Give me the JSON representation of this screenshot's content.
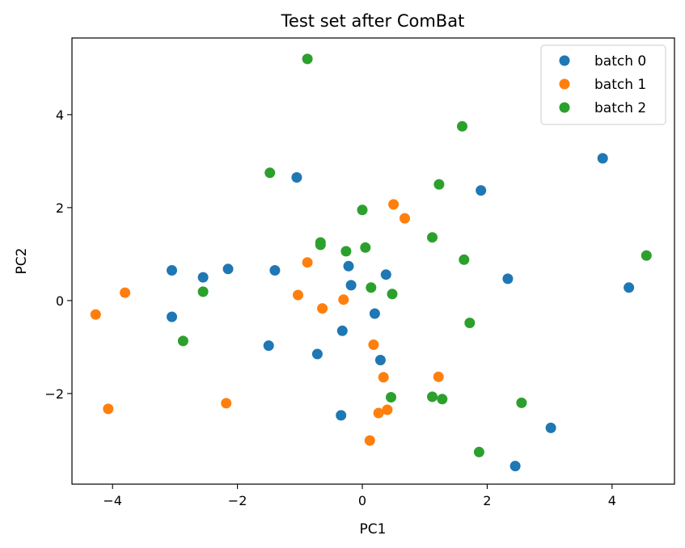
{
  "chart_data": {
    "type": "scatter",
    "title": "Test set after ComBat",
    "xlabel": "PC1",
    "ylabel": "PC2",
    "xlim": [
      -4.65,
      5.0
    ],
    "ylim": [
      -3.95,
      5.65
    ],
    "xticks": [
      -4,
      -2,
      0,
      2,
      4
    ],
    "yticks": [
      -2,
      0,
      2,
      4
    ],
    "grid": false,
    "legend_position": "top-right",
    "series": [
      {
        "name": "batch 0",
        "color": "#1f77b4",
        "points": [
          [
            -3.05,
            0.65
          ],
          [
            -2.55,
            0.5
          ],
          [
            -2.15,
            0.68
          ],
          [
            -1.4,
            0.65
          ],
          [
            -1.05,
            2.65
          ],
          [
            -3.05,
            -0.35
          ],
          [
            -1.5,
            -0.97
          ],
          [
            -0.72,
            -1.15
          ],
          [
            -0.32,
            -0.65
          ],
          [
            -0.22,
            0.74
          ],
          [
            -0.18,
            0.33
          ],
          [
            0.38,
            0.56
          ],
          [
            0.2,
            -0.28
          ],
          [
            0.29,
            -1.28
          ],
          [
            -0.34,
            -2.47
          ],
          [
            1.9,
            2.37
          ],
          [
            2.33,
            0.47
          ],
          [
            3.85,
            3.06
          ],
          [
            4.27,
            0.28
          ],
          [
            3.02,
            -2.74
          ],
          [
            2.45,
            -3.56
          ]
        ]
      },
      {
        "name": "batch 1",
        "color": "#ff7f0e",
        "points": [
          [
            -4.27,
            -0.3
          ],
          [
            -3.8,
            0.17
          ],
          [
            -4.07,
            -2.33
          ],
          [
            -2.18,
            -2.21
          ],
          [
            -0.88,
            0.82
          ],
          [
            -1.03,
            0.12
          ],
          [
            -0.64,
            -0.17
          ],
          [
            -0.3,
            0.02
          ],
          [
            0.5,
            2.07
          ],
          [
            0.68,
            1.77
          ],
          [
            0.18,
            -0.95
          ],
          [
            0.34,
            -1.65
          ],
          [
            1.22,
            -1.64
          ],
          [
            0.26,
            -2.42
          ],
          [
            0.4,
            -2.35
          ],
          [
            0.12,
            -3.01
          ]
        ]
      },
      {
        "name": "batch 2",
        "color": "#2ca02c",
        "points": [
          [
            -0.88,
            5.2
          ],
          [
            1.6,
            3.75
          ],
          [
            -1.48,
            2.75
          ],
          [
            1.23,
            2.5
          ],
          [
            0.0,
            1.95
          ],
          [
            -0.67,
            1.25
          ],
          [
            -0.67,
            1.2
          ],
          [
            -0.26,
            1.06
          ],
          [
            0.05,
            1.14
          ],
          [
            1.12,
            1.36
          ],
          [
            1.63,
            0.88
          ],
          [
            4.55,
            0.97
          ],
          [
            0.14,
            0.28
          ],
          [
            0.48,
            0.14
          ],
          [
            -2.55,
            0.19
          ],
          [
            1.72,
            -0.48
          ],
          [
            -2.87,
            -0.87
          ],
          [
            0.46,
            -2.08
          ],
          [
            1.12,
            -2.07
          ],
          [
            1.28,
            -2.12
          ],
          [
            2.55,
            -2.2
          ],
          [
            1.87,
            -3.26
          ]
        ]
      }
    ]
  }
}
